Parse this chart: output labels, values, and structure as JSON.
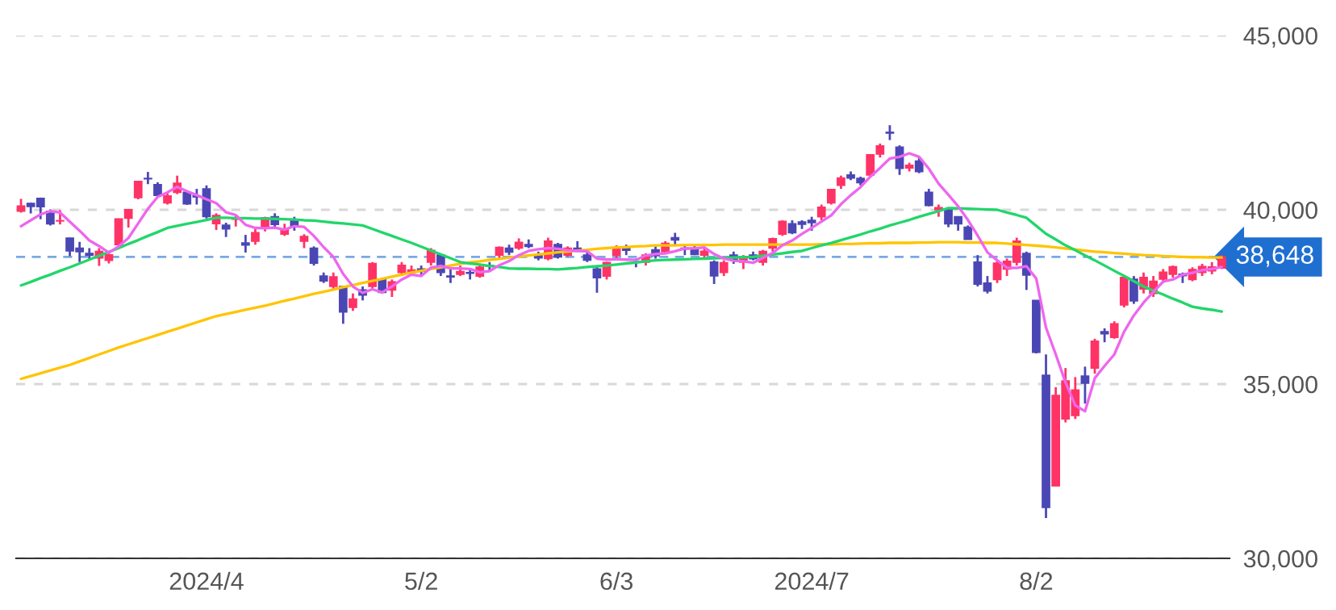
{
  "chart_data": {
    "type": "candlestick",
    "categories": [
      null,
      null,
      null,
      null,
      null,
      null,
      null,
      null,
      null,
      null,
      null,
      null,
      null,
      null,
      null,
      null,
      null,
      null,
      null,
      "2024/4",
      null,
      null,
      null,
      null,
      null,
      null,
      null,
      null,
      null,
      null,
      null,
      null,
      null,
      null,
      null,
      null,
      null,
      null,
      null,
      null,
      null,
      "5/2",
      null,
      null,
      null,
      null,
      null,
      null,
      null,
      null,
      null,
      null,
      null,
      null,
      null,
      null,
      null,
      null,
      null,
      null,
      null,
      "6/3",
      null,
      null,
      null,
      null,
      null,
      null,
      null,
      null,
      null,
      null,
      null,
      null,
      null,
      null,
      null,
      null,
      null,
      null,
      null,
      "2024/7",
      null,
      null,
      null,
      null,
      null,
      null,
      null,
      null,
      null,
      null,
      null,
      null,
      null,
      null,
      null,
      null,
      null,
      null,
      null,
      null,
      null,
      null,
      "8/2",
      null,
      null,
      null,
      null,
      null,
      null,
      null,
      null,
      null,
      null,
      null,
      null,
      null,
      null,
      null,
      null,
      null,
      null,
      null
    ],
    "ohlc": [
      [
        39960,
        40314,
        39920,
        40109
      ],
      [
        40185,
        40201,
        39895,
        40097
      ],
      [
        40330,
        40350,
        39730,
        40090
      ],
      [
        39960,
        40011,
        39550,
        39598
      ],
      [
        39680,
        39990,
        39580,
        39688
      ],
      [
        39190,
        39200,
        38670,
        38820
      ],
      [
        38900,
        39080,
        38500,
        38797
      ],
      [
        38750,
        38900,
        38560,
        38695
      ],
      [
        38620,
        38900,
        38390,
        38807
      ],
      [
        38550,
        38800,
        38460,
        38707
      ],
      [
        39000,
        39750,
        38990,
        39740
      ],
      [
        39760,
        40010,
        39490,
        40003
      ],
      [
        40351,
        40815,
        40300,
        40815
      ],
      [
        40900,
        41087,
        40736,
        40888
      ],
      [
        40720,
        40790,
        40400,
        40414
      ],
      [
        40200,
        40500,
        40150,
        40398
      ],
      [
        40500,
        40980,
        40450,
        40762
      ],
      [
        40500,
        40530,
        40140,
        40168
      ],
      [
        40400,
        40600,
        40150,
        40369
      ],
      [
        40600,
        40700,
        39750,
        39803
      ],
      [
        39600,
        39900,
        39420,
        39838
      ],
      [
        39560,
        39630,
        39220,
        39451
      ],
      [
        39730,
        39820,
        39520,
        39773
      ],
      [
        39050,
        39280,
        38774,
        38992
      ],
      [
        39100,
        39450,
        39000,
        39347
      ],
      [
        39500,
        39800,
        39380,
        39773
      ],
      [
        39800,
        39900,
        39500,
        39581
      ],
      [
        39300,
        39600,
        39250,
        39442
      ],
      [
        39700,
        39800,
        39400,
        39523
      ],
      [
        39100,
        39300,
        38900,
        39232
      ],
      [
        38900,
        38950,
        38400,
        38471
      ],
      [
        38100,
        38200,
        37900,
        37961
      ],
      [
        37800,
        38200,
        37700,
        38079
      ],
      [
        37800,
        37800,
        36730,
        37068
      ],
      [
        37200,
        37600,
        37100,
        37438
      ],
      [
        37700,
        37800,
        37400,
        37552
      ],
      [
        37800,
        38500,
        37700,
        38460
      ],
      [
        38000,
        38050,
        37600,
        37628
      ],
      [
        37700,
        38000,
        37500,
        37934
      ],
      [
        38200,
        38500,
        38100,
        38405
      ],
      [
        38200,
        38400,
        38100,
        38274
      ],
      [
        38300,
        38400,
        38100,
        38236
      ],
      [
        38500,
        38900,
        38400,
        38835
      ],
      [
        38700,
        38750,
        38100,
        38202
      ],
      [
        38100,
        38300,
        37900,
        38073
      ],
      [
        38150,
        38400,
        38100,
        38229
      ],
      [
        38200,
        38300,
        38000,
        38179
      ],
      [
        38100,
        38450,
        38050,
        38356
      ],
      [
        38400,
        38500,
        38250,
        38385
      ],
      [
        38700,
        38950,
        38600,
        38920
      ],
      [
        38900,
        39000,
        38700,
        38787
      ],
      [
        38900,
        39180,
        38850,
        39069
      ],
      [
        39000,
        39150,
        38900,
        38946
      ],
      [
        38700,
        38800,
        38550,
        38617
      ],
      [
        38600,
        39200,
        38550,
        39103
      ],
      [
        39000,
        39050,
        38600,
        38646
      ],
      [
        38700,
        38950,
        38650,
        38900
      ],
      [
        38900,
        39100,
        38800,
        38855
      ],
      [
        38700,
        38800,
        38500,
        38556
      ],
      [
        38300,
        38400,
        37620,
        38054
      ],
      [
        38100,
        38500,
        38000,
        38487
      ],
      [
        38700,
        38980,
        38600,
        38923
      ],
      [
        38900,
        39000,
        38700,
        38837
      ],
      [
        38500,
        38600,
        38350,
        38490
      ],
      [
        38500,
        38750,
        38400,
        38703
      ],
      [
        38850,
        38950,
        38600,
        38683
      ],
      [
        38800,
        39100,
        38750,
        39038
      ],
      [
        39200,
        39340,
        39000,
        39134
      ],
      [
        38900,
        39000,
        38700,
        38876
      ],
      [
        38900,
        39000,
        38700,
        38720
      ],
      [
        38700,
        38900,
        38600,
        38814
      ],
      [
        38500,
        38550,
        37870,
        38102
      ],
      [
        38200,
        38550,
        38100,
        38482
      ],
      [
        38700,
        38800,
        38450,
        38570
      ],
      [
        38500,
        38700,
        38300,
        38633
      ],
      [
        38700,
        38800,
        38550,
        38596
      ],
      [
        38500,
        38850,
        38400,
        38804
      ],
      [
        38900,
        39200,
        38800,
        39173
      ],
      [
        39300,
        39700,
        39250,
        39667
      ],
      [
        39600,
        39700,
        39300,
        39341
      ],
      [
        39650,
        39700,
        39450,
        39583
      ],
      [
        39700,
        39800,
        39400,
        39631
      ],
      [
        39800,
        40150,
        39700,
        40074
      ],
      [
        40200,
        40600,
        40150,
        40580
      ],
      [
        40700,
        40980,
        40600,
        40913
      ],
      [
        41000,
        41100,
        40850,
        40912
      ],
      [
        40900,
        40950,
        40700,
        40780
      ],
      [
        41000,
        41600,
        40950,
        41580
      ],
      [
        41600,
        41900,
        41500,
        41831
      ],
      [
        42200,
        42426,
        42000,
        42224
      ],
      [
        41800,
        41850,
        41000,
        41190
      ],
      [
        41200,
        41350,
        41100,
        41275
      ],
      [
        41400,
        41500,
        41050,
        41097
      ],
      [
        40500,
        40600,
        40100,
        40126
      ],
      [
        40000,
        40150,
        39800,
        40063
      ],
      [
        40000,
        40050,
        39500,
        39599
      ],
      [
        39800,
        39800,
        39400,
        39594
      ],
      [
        39500,
        39550,
        39150,
        39154
      ],
      [
        38500,
        38700,
        37800,
        37869
      ],
      [
        37900,
        38100,
        37600,
        37667
      ],
      [
        38000,
        38550,
        37900,
        38468
      ],
      [
        38300,
        38600,
        38100,
        38525
      ],
      [
        38500,
        39200,
        38400,
        39101
      ],
      [
        38750,
        38800,
        37700,
        38126
      ],
      [
        37400,
        37400,
        35880,
        35909
      ],
      [
        35250,
        35850,
        31156,
        31458
      ],
      [
        32080,
        34910,
        32080,
        34675
      ],
      [
        34000,
        35460,
        33900,
        35089
      ],
      [
        34100,
        35200,
        34000,
        34831
      ],
      [
        35230,
        35500,
        34440,
        35025
      ],
      [
        35460,
        36300,
        35300,
        36232
      ],
      [
        36500,
        36600,
        36200,
        36442
      ],
      [
        36340,
        36800,
        36300,
        36726
      ],
      [
        37270,
        38100,
        37200,
        38062
      ],
      [
        38010,
        38100,
        37300,
        37388
      ],
      [
        37730,
        38200,
        37600,
        38062
      ],
      [
        37600,
        38100,
        37500,
        37951
      ],
      [
        38010,
        38300,
        37900,
        38211
      ],
      [
        38150,
        38400,
        38050,
        38364
      ],
      [
        38150,
        38200,
        37900,
        38110
      ],
      [
        38000,
        38350,
        37950,
        38288
      ],
      [
        38200,
        38450,
        38100,
        38371
      ],
      [
        38250,
        38500,
        38150,
        38362
      ],
      [
        38330,
        38700,
        38300,
        38648
      ]
    ],
    "colors": [
      "#ff3366",
      "#4a47b5",
      "#4a47b5",
      "#4a47b5",
      "#ff3366",
      "#4a47b5",
      "#4a47b5",
      "#4a47b5",
      "#ff3366",
      "#ff3366",
      "#ff3366",
      "#ff3366",
      "#ff3366",
      "#4a47b5",
      "#4a47b5",
      "#ff3366",
      "#ff3366",
      "#4a47b5",
      "#4a47b5",
      "#4a47b5",
      "#ff3366",
      "#4a47b5",
      "#ff3366",
      "#4a47b5",
      "#ff3366",
      "#ff3366",
      "#4a47b5",
      "#ff3366",
      "#4a47b5",
      "#ff3366",
      "#4a47b5",
      "#4a47b5",
      "#ff3366",
      "#4a47b5",
      "#ff3366",
      "#4a47b5",
      "#ff3366",
      "#4a47b5",
      "#ff3366",
      "#ff3366",
      "#ff3366",
      "#4a47b5",
      "#ff3366",
      "#4a47b5",
      "#4a47b5",
      "#ff3366",
      "#4a47b5",
      "#ff3366",
      "#4a47b5",
      "#ff3366",
      "#4a47b5",
      "#ff3366",
      "#4a47b5",
      "#4a47b5",
      "#ff3366",
      "#4a47b5",
      "#ff3366",
      "#4a47b5",
      "#4a47b5",
      "#4a47b5",
      "#ff3366",
      "#ff3366",
      "#4a47b5",
      "#4a47b5",
      "#ff3366",
      "#4a47b5",
      "#ff3366",
      "#4a47b5",
      "#4a47b5",
      "#4a47b5",
      "#ff3366",
      "#4a47b5",
      "#ff3366",
      "#4a47b5",
      "#ff3366",
      "#4a47b5",
      "#ff3366",
      "#ff3366",
      "#ff3366",
      "#4a47b5",
      "#4a47b5",
      "#4a47b5",
      "#ff3366",
      "#ff3366",
      "#ff3366",
      "#4a47b5",
      "#4a47b5",
      "#ff3366",
      "#ff3366",
      "#4a47b5",
      "#4a47b5",
      "#ff3366",
      "#4a47b5",
      "#4a47b5",
      "#ff3366",
      "#4a47b5",
      "#4a47b5",
      "#4a47b5",
      "#4a47b5",
      "#4a47b5",
      "#ff3366",
      "#ff3366",
      "#ff3366",
      "#4a47b5",
      "#4a47b5",
      "#4a47b5",
      "#ff3366",
      "#ff3366",
      "#ff3366",
      "#4a47b5",
      "#ff3366",
      "#4a47b5",
      "#ff3366",
      "#ff3366",
      "#4a47b5",
      "#ff3366",
      "#ff3366",
      "#ff3366",
      "#ff3366",
      "#4a47b5",
      "#ff3366",
      "#ff3366",
      "#ff3366",
      "#ff3366"
    ],
    "series": [
      {
        "type": "line",
        "color": "#ffc400",
        "values": [
          35150,
          35230,
          35310,
          35390,
          35470,
          35550,
          35650,
          35750,
          35850,
          35950,
          36050,
          36140,
          36230,
          36320,
          36410,
          36500,
          36590,
          36680,
          36770,
          36860,
          36950,
          37010,
          37070,
          37130,
          37190,
          37250,
          37320,
          37390,
          37450,
          37520,
          37590,
          37650,
          37710,
          37780,
          37840,
          37900,
          37960,
          38020,
          38080,
          38140,
          38200,
          38250,
          38300,
          38350,
          38400,
          38450,
          38490,
          38520,
          38560,
          38590,
          38630,
          38660,
          38690,
          38720,
          38750,
          38780,
          38800,
          38830,
          38850,
          38880,
          38900,
          38920,
          38930,
          38950,
          38960,
          38980,
          38980,
          38980,
          38990,
          38990,
          38990,
          38990,
          39000,
          39000,
          39000,
          39000,
          39000,
          39000,
          39000,
          39000,
          39000,
          39000,
          39010,
          39010,
          39020,
          39020,
          39030,
          39040,
          39040,
          39050,
          39050,
          39050,
          39060,
          39060,
          39070,
          39070,
          39070,
          39060,
          39060,
          39050,
          39050,
          39030,
          39010,
          38990,
          38970,
          38950,
          38920,
          38890,
          38860,
          38830,
          38800,
          38780,
          38760,
          38740,
          38720,
          38700,
          38690,
          38670,
          38660,
          38650,
          38640,
          38640,
          38630,
          38630
        ]
      },
      {
        "type": "line",
        "color": "#22d66a",
        "values": [
          37830,
          37930,
          38040,
          38140,
          38250,
          38350,
          38460,
          38570,
          38680,
          38790,
          38900,
          39020,
          39130,
          39250,
          39360,
          39480,
          39540,
          39600,
          39650,
          39710,
          39770,
          39770,
          39760,
          39760,
          39750,
          39750,
          39740,
          39730,
          39720,
          39700,
          39690,
          39660,
          39630,
          39610,
          39580,
          39550,
          39450,
          39350,
          39250,
          39150,
          39050,
          38940,
          38830,
          38720,
          38610,
          38500,
          38460,
          38430,
          38390,
          38360,
          38320,
          38310,
          38310,
          38300,
          38300,
          38290,
          38310,
          38330,
          38360,
          38380,
          38400,
          38430,
          38460,
          38490,
          38520,
          38550,
          38560,
          38570,
          38580,
          38590,
          38600,
          38610,
          38620,
          38630,
          38640,
          38650,
          38680,
          38720,
          38750,
          38790,
          38820,
          38900,
          38980,
          39050,
          39130,
          39210,
          39290,
          39380,
          39460,
          39550,
          39630,
          39710,
          39800,
          39880,
          39960,
          40050,
          40040,
          40030,
          40020,
          40010,
          40000,
          39920,
          39850,
          39770,
          39540,
          39310,
          39150,
          38980,
          38840,
          38690,
          38550,
          38400,
          38250,
          38100,
          37950,
          37800,
          37680,
          37570,
          37450,
          37340,
          37220,
          37170,
          37130,
          37080
        ]
      },
      {
        "type": "line",
        "color": "#ee66ee",
        "values": [
          39530,
          39700,
          39870,
          39960,
          39920,
          39660,
          39400,
          39120,
          38960,
          38770,
          38950,
          39190,
          39610,
          40030,
          40370,
          40500,
          40660,
          40530,
          40420,
          40300,
          40190,
          39930,
          39850,
          39570,
          39480,
          39470,
          39490,
          39430,
          39530,
          39510,
          39250,
          38930,
          38650,
          38160,
          37800,
          37620,
          37720,
          37630,
          37800,
          38000,
          38140,
          38100,
          38340,
          38390,
          38320,
          38320,
          38300,
          38210,
          38240,
          38410,
          38530,
          38700,
          38820,
          38870,
          38900,
          38880,
          38840,
          38820,
          38810,
          38600,
          38570,
          38580,
          38570,
          38560,
          38690,
          38730,
          38750,
          38810,
          38890,
          38890,
          38920,
          38730,
          38600,
          38540,
          38520,
          38480,
          38620,
          38760,
          38980,
          39120,
          39310,
          39480,
          39660,
          39840,
          40160,
          40420,
          40650,
          40950,
          41200,
          41470,
          41520,
          41620,
          41520,
          41180,
          40750,
          40430,
          40100,
          39710,
          39260,
          38780,
          38550,
          38340,
          38330,
          38380,
          38030,
          36620,
          35850,
          35050,
          34390,
          34220,
          35170,
          35520,
          35850,
          36500,
          36970,
          37340,
          37640,
          37940,
          38000,
          38140,
          38190,
          38270,
          38300,
          38360
        ]
      }
    ],
    "ylim": [
      30000,
      45000
    ],
    "yticks": [
      {
        "value": 30000,
        "label": "30,000"
      },
      {
        "value": 35000,
        "label": "35,000"
      },
      {
        "value": 40000,
        "label": "40,000"
      },
      {
        "value": 45000,
        "label": "45,000"
      }
    ],
    "ref_lines": [
      {
        "axis": "y",
        "value": 38648,
        "label": "38,648",
        "color": "#1f6fd1",
        "line_style": "dashed"
      }
    ],
    "grid": "y",
    "legend": false
  }
}
